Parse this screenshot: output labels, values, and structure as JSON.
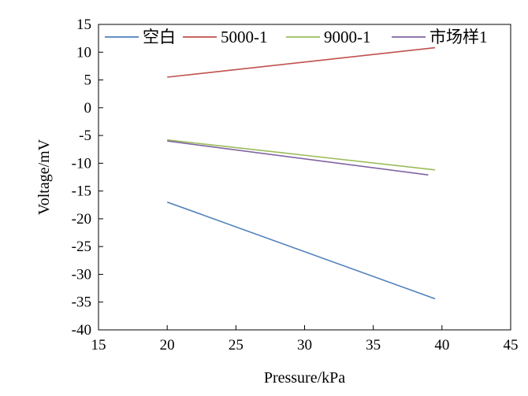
{
  "chart_data": {
    "type": "line",
    "title": "",
    "xlabel": "Pressure/kPa",
    "ylabel": "Voltage/mV",
    "xlim": [
      15,
      45
    ],
    "ylim": [
      -40,
      15
    ],
    "xticks": [
      15,
      20,
      25,
      30,
      35,
      40,
      45
    ],
    "yticks": [
      15,
      10,
      5,
      0,
      -5,
      -10,
      -15,
      -20,
      -25,
      -30,
      -35,
      -40
    ],
    "xtick_labels": [
      "15",
      "20",
      "25",
      "30",
      "35",
      "40",
      "45"
    ],
    "ytick_labels": [
      "15",
      "10",
      "5",
      "0",
      "-5",
      "-10",
      "-15",
      "-20",
      "-25",
      "-30",
      "-35",
      "-40"
    ],
    "grid": false,
    "legend": "top",
    "series": [
      {
        "name": "空白",
        "color": "#4e7fba",
        "x": [
          20,
          39.5
        ],
        "values": [
          -17.0,
          -34.4
        ]
      },
      {
        "name": "5000-1",
        "color": "#c0504d",
        "x": [
          20,
          39.5
        ],
        "values": [
          5.5,
          10.8
        ]
      },
      {
        "name": "9000-1",
        "color": "#9bbb59",
        "x": [
          20,
          39.5
        ],
        "values": [
          -5.8,
          -11.2
        ]
      },
      {
        "name": "市场样1",
        "color": "#8064a2",
        "x": [
          20,
          39
        ],
        "values": [
          -6.0,
          -12.1
        ]
      }
    ]
  }
}
